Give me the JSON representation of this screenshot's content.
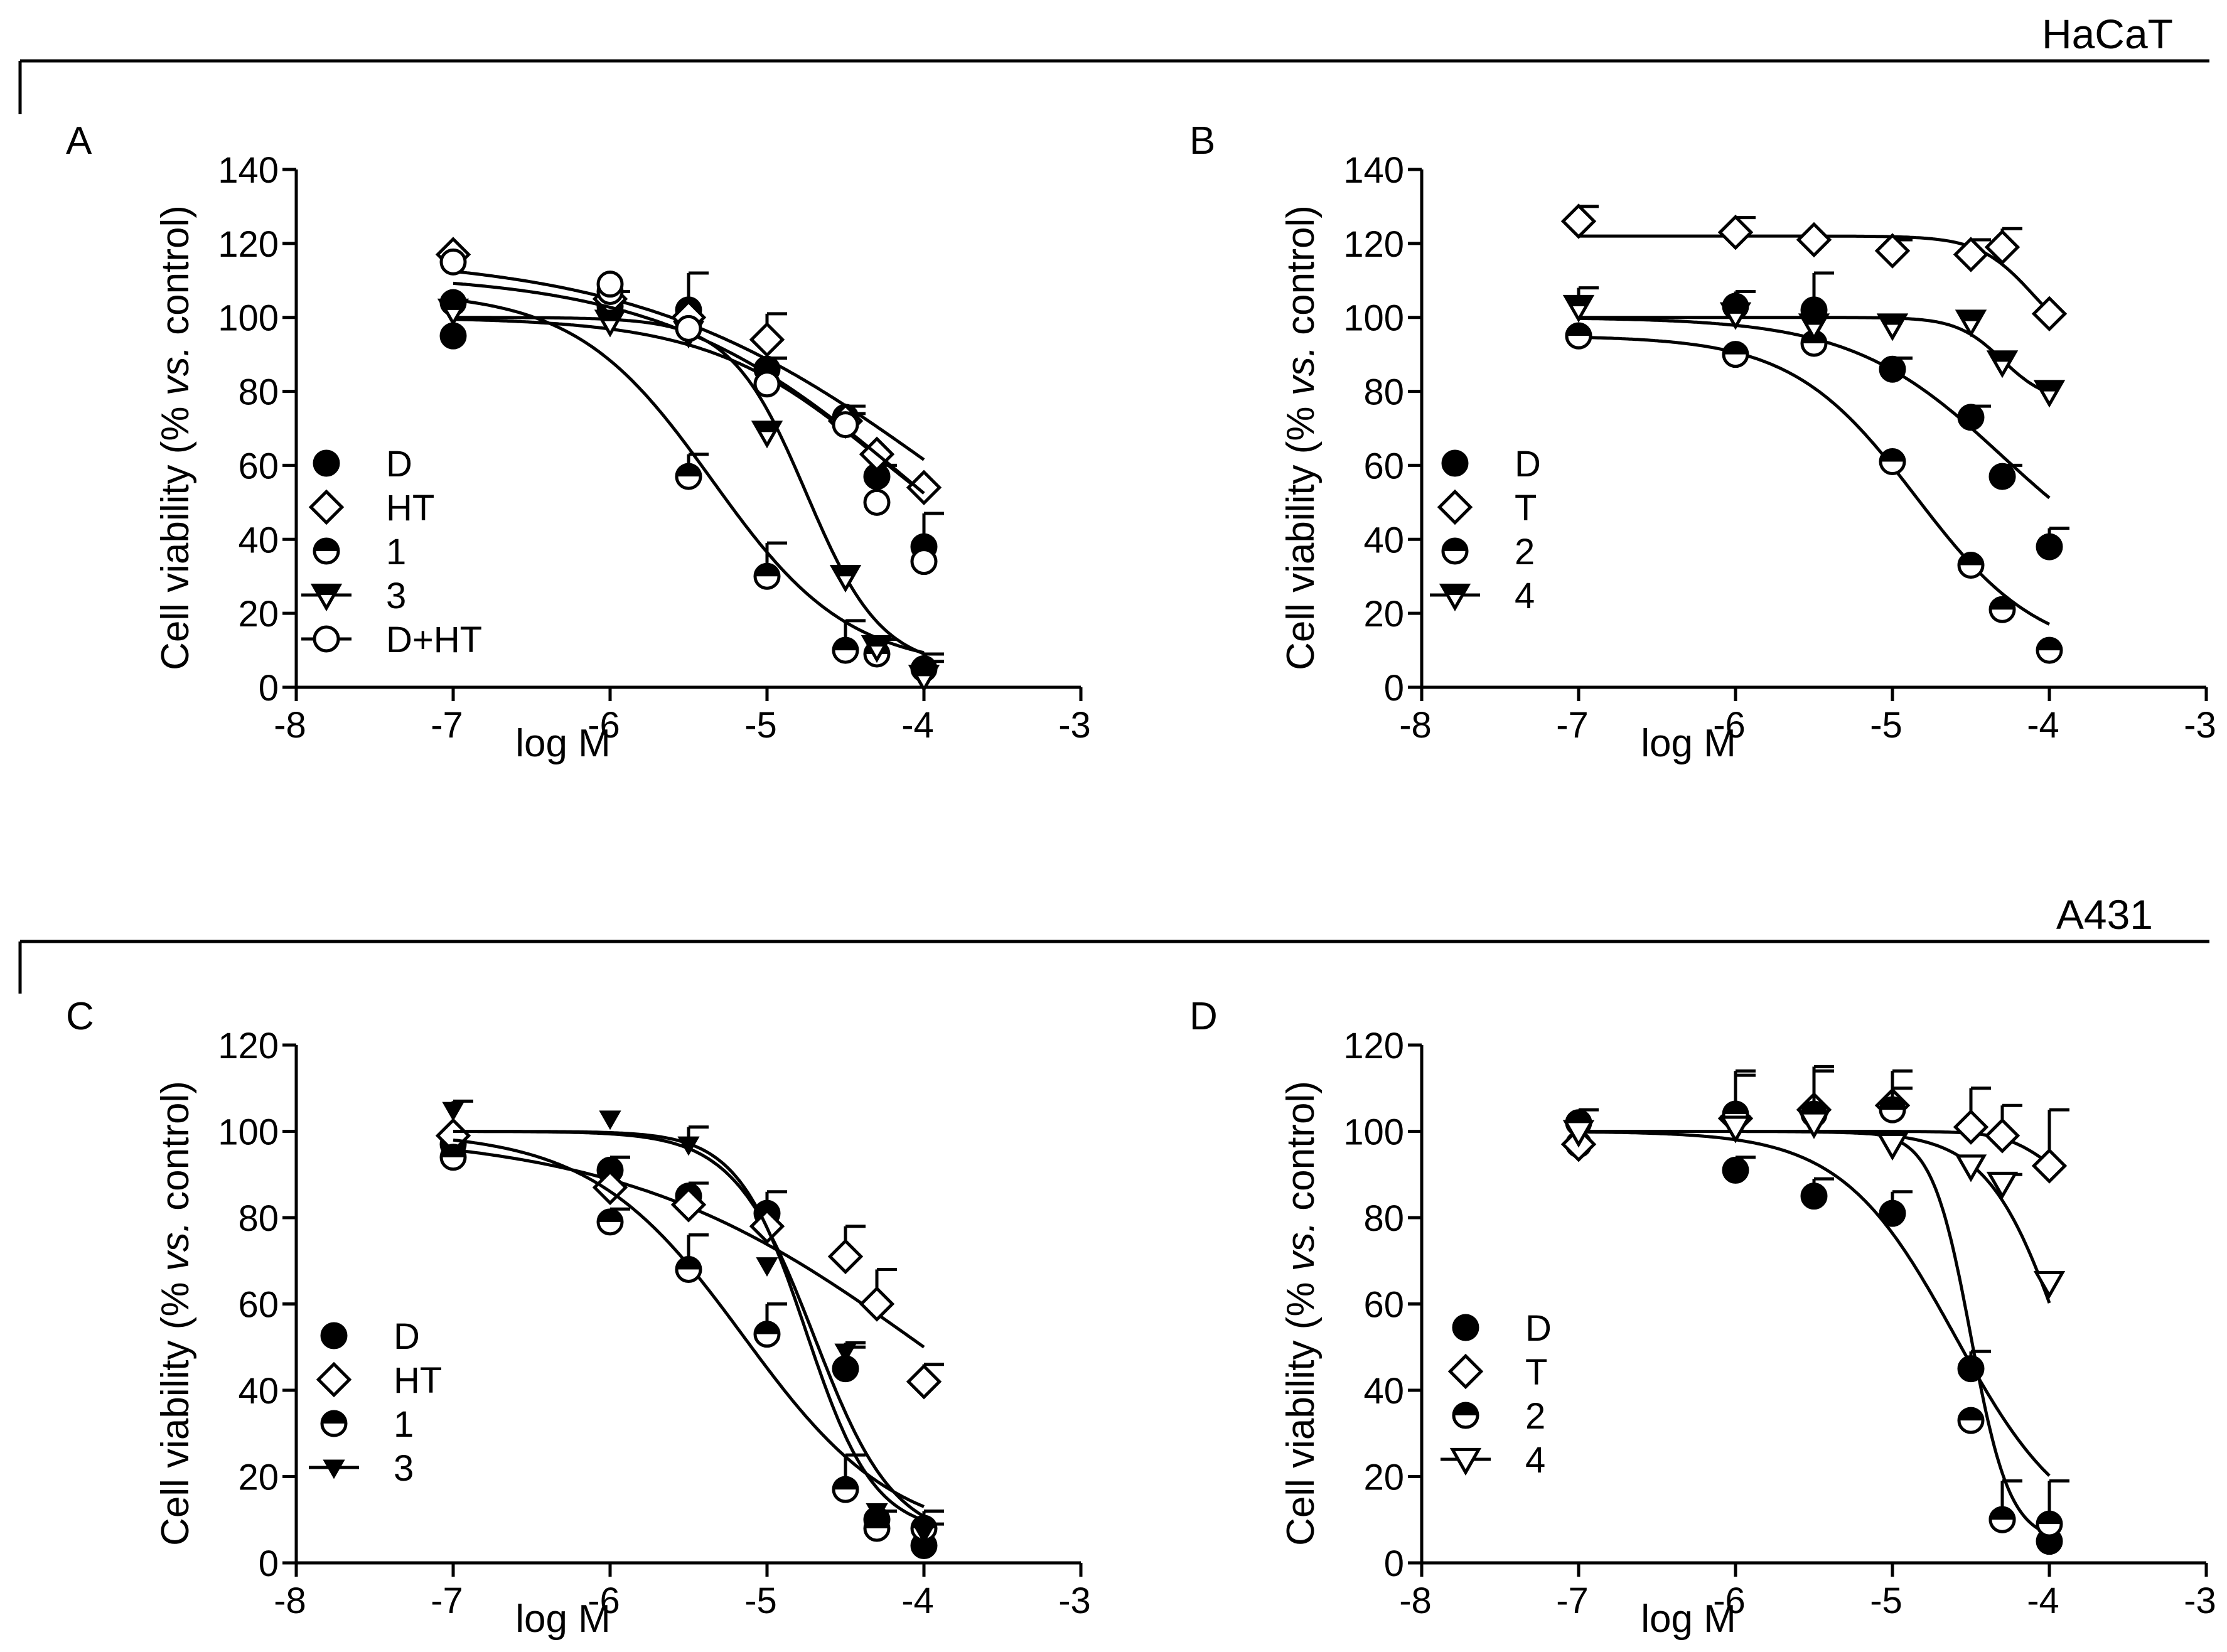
{
  "sections": [
    {
      "label": "HaCaT"
    },
    {
      "label": "A431"
    }
  ],
  "chart_data": [
    {
      "type": "scatter",
      "panel": "A",
      "section": "HaCaT",
      "xlabel": "log M",
      "ylabel_parts": [
        "Cell viability (% ",
        "vs.",
        " control)"
      ],
      "xlim": [
        -8,
        -3
      ],
      "ylim": [
        0,
        140
      ],
      "xticks": [
        -8,
        -7,
        -6,
        -5,
        -4,
        -3
      ],
      "yticks": [
        0,
        20,
        40,
        60,
        80,
        100,
        120,
        140
      ],
      "legend_position": "lower-left",
      "series": [
        {
          "name": "D",
          "marker": "circle-filled",
          "fit": {
            "top": 100,
            "bottom": 25,
            "logec50": -4.3,
            "hill": 0.8
          },
          "points": [
            {
              "x": -7,
              "y": 95,
              "err": 0
            },
            {
              "x": -6,
              "y": 103,
              "err": 4
            },
            {
              "x": -5.5,
              "y": 102,
              "err": 10
            },
            {
              "x": -5,
              "y": 86,
              "err": 3
            },
            {
              "x": -4.5,
              "y": 73,
              "err": 3
            },
            {
              "x": -4.3,
              "y": 57,
              "err": 3
            },
            {
              "x": -4,
              "y": 38,
              "err": 9
            }
          ]
        },
        {
          "name": "HT",
          "marker": "diamond-open",
          "fit": {
            "top": 117,
            "bottom": 0,
            "logec50": -3.9,
            "hill": 0.45
          },
          "points": [
            {
              "x": -7,
              "y": 117,
              "err": 0
            },
            {
              "x": -6,
              "y": 105,
              "err": 0
            },
            {
              "x": -5.5,
              "y": 100,
              "err": 0
            },
            {
              "x": -5,
              "y": 94,
              "err": 7
            },
            {
              "x": -4.5,
              "y": 72,
              "err": 2
            },
            {
              "x": -4.3,
              "y": 63,
              "err": 0
            },
            {
              "x": -4,
              "y": 54,
              "err": 0
            }
          ]
        },
        {
          "name": "1",
          "marker": "circle-half",
          "fit": {
            "top": 107,
            "bottom": 5,
            "logec50": -5.35,
            "hill": 1.0
          },
          "points": [
            {
              "x": -7,
              "y": 104,
              "err": 0
            },
            {
              "x": -6,
              "y": 107,
              "err": 0
            },
            {
              "x": -5.5,
              "y": 57,
              "err": 6
            },
            {
              "x": -5,
              "y": 30,
              "err": 9
            },
            {
              "x": -4.5,
              "y": 10,
              "err": 8
            },
            {
              "x": -4.3,
              "y": 9,
              "err": 4
            },
            {
              "x": -4,
              "y": 5,
              "err": 4
            }
          ]
        },
        {
          "name": "3",
          "marker": "triangle-down-half",
          "fit": {
            "top": 100,
            "bottom": 5,
            "logec50": -4.75,
            "hill": 1.8
          },
          "points": [
            {
              "x": -7,
              "y": 102,
              "err": 0
            },
            {
              "x": -6,
              "y": 99,
              "err": 0
            },
            {
              "x": -5.5,
              "y": 96,
              "err": 0
            },
            {
              "x": -5,
              "y": 69,
              "err": 0
            },
            {
              "x": -4.5,
              "y": 30,
              "err": 0
            },
            {
              "x": -4.3,
              "y": 11,
              "err": 2
            },
            {
              "x": -4,
              "y": 3,
              "err": 4
            }
          ]
        },
        {
          "name": "D+HT",
          "marker": "circle-open",
          "fit": {
            "top": 112,
            "bottom": 0,
            "logec50": -4.1,
            "hill": 0.55
          },
          "points": [
            {
              "x": -7,
              "y": 115,
              "err": 0
            },
            {
              "x": -6,
              "y": 109,
              "err": 0
            },
            {
              "x": -5.5,
              "y": 97,
              "err": 0
            },
            {
              "x": -5,
              "y": 82,
              "err": 0
            },
            {
              "x": -4.5,
              "y": 71,
              "err": 0
            },
            {
              "x": -4.3,
              "y": 50,
              "err": 0
            },
            {
              "x": -4,
              "y": 34,
              "err": 0
            }
          ]
        }
      ]
    },
    {
      "type": "scatter",
      "panel": "B",
      "section": "HaCaT",
      "xlabel": "log M",
      "ylabel_parts": [
        "Cell viability (% ",
        "vs.",
        " control)"
      ],
      "xlim": [
        -8,
        -3
      ],
      "ylim": [
        0,
        140
      ],
      "xticks": [
        -8,
        -7,
        -6,
        -5,
        -4,
        -3
      ],
      "yticks": [
        0,
        20,
        40,
        60,
        80,
        100,
        120,
        140
      ],
      "legend_position": "lower-left",
      "series": [
        {
          "name": "D",
          "marker": "circle-filled",
          "fit": {
            "top": 100,
            "bottom": 25,
            "logec50": -4.3,
            "hill": 0.9
          },
          "points": [
            {
              "x": -7,
              "y": 95,
              "err": 0
            },
            {
              "x": -6,
              "y": 103,
              "err": 4
            },
            {
              "x": -5.5,
              "y": 102,
              "err": 10
            },
            {
              "x": -5,
              "y": 86,
              "err": 3
            },
            {
              "x": -4.5,
              "y": 73,
              "err": 3
            },
            {
              "x": -4.3,
              "y": 57,
              "err": 3
            },
            {
              "x": -4,
              "y": 38,
              "err": 5
            }
          ]
        },
        {
          "name": "T",
          "marker": "diamond-open",
          "fit": {
            "top": 122,
            "bottom": 90,
            "logec50": -4.1,
            "hill": 2.5
          },
          "points": [
            {
              "x": -7,
              "y": 126,
              "err": 4
            },
            {
              "x": -6,
              "y": 123,
              "err": 4
            },
            {
              "x": -5.5,
              "y": 121,
              "err": 0
            },
            {
              "x": -5,
              "y": 118,
              "err": 3
            },
            {
              "x": -4.5,
              "y": 117,
              "err": 4
            },
            {
              "x": -4.3,
              "y": 119,
              "err": 5
            },
            {
              "x": -4,
              "y": 101,
              "err": 0
            }
          ]
        },
        {
          "name": "2",
          "marker": "circle-half",
          "fit": {
            "top": 95,
            "bottom": 8,
            "logec50": -4.85,
            "hill": 1.1
          },
          "points": [
            {
              "x": -7,
              "y": 95,
              "err": 0
            },
            {
              "x": -6,
              "y": 90,
              "err": 0
            },
            {
              "x": -5.5,
              "y": 93,
              "err": 0
            },
            {
              "x": -5,
              "y": 61,
              "err": 0
            },
            {
              "x": -4.5,
              "y": 33,
              "err": 0
            },
            {
              "x": -4.3,
              "y": 21,
              "err": 0
            },
            {
              "x": -4,
              "y": 10,
              "err": 0
            }
          ]
        },
        {
          "name": "4",
          "marker": "triangle-down-half",
          "fit": {
            "top": 100,
            "bottom": 77,
            "logec50": -4.3,
            "hill": 3.0
          },
          "points": [
            {
              "x": -7,
              "y": 103,
              "err": 5
            },
            {
              "x": -6,
              "y": 101,
              "err": 0
            },
            {
              "x": -5.5,
              "y": 98,
              "err": 0
            },
            {
              "x": -5,
              "y": 98,
              "err": 0
            },
            {
              "x": -4.5,
              "y": 99,
              "err": 0
            },
            {
              "x": -4.3,
              "y": 88,
              "err": 0
            },
            {
              "x": -4,
              "y": 80,
              "err": 0
            }
          ]
        }
      ]
    },
    {
      "type": "scatter",
      "panel": "C",
      "section": "A431",
      "xlabel": "log M",
      "ylabel_parts": [
        "Cell viability (% ",
        "vs.",
        " control)"
      ],
      "xlim": [
        -8,
        -3
      ],
      "ylim": [
        0,
        120
      ],
      "xticks": [
        -8,
        -7,
        -6,
        -5,
        -4,
        -3
      ],
      "yticks": [
        0,
        20,
        40,
        60,
        80,
        100,
        120
      ],
      "legend_position": "lower-left",
      "series": [
        {
          "name": "D",
          "marker": "circle-filled",
          "fit": {
            "top": 100,
            "bottom": 5,
            "logec50": -4.7,
            "hill": 1.7
          },
          "points": [
            {
              "x": -7,
              "y": 97,
              "err": 0
            },
            {
              "x": -6,
              "y": 91,
              "err": 3
            },
            {
              "x": -5.5,
              "y": 85,
              "err": 3
            },
            {
              "x": -5,
              "y": 81,
              "err": 5
            },
            {
              "x": -4.5,
              "y": 45,
              "err": 5
            },
            {
              "x": -4.3,
              "y": 10,
              "err": 2
            },
            {
              "x": -4,
              "y": 4,
              "err": 5
            }
          ]
        },
        {
          "name": "HT",
          "marker": "diamond-open",
          "fit": {
            "top": 100,
            "bottom": 0,
            "logec50": -4.0,
            "hill": 0.45
          },
          "points": [
            {
              "x": -7,
              "y": 99,
              "err": 0
            },
            {
              "x": -6,
              "y": 87,
              "err": 0
            },
            {
              "x": -5.5,
              "y": 83,
              "err": 0
            },
            {
              "x": -5,
              "y": 78,
              "err": 0
            },
            {
              "x": -4.5,
              "y": 71,
              "err": 7
            },
            {
              "x": -4.3,
              "y": 60,
              "err": 8
            },
            {
              "x": -4,
              "y": 42,
              "err": 4
            }
          ]
        },
        {
          "name": "1",
          "marker": "circle-half",
          "fit": {
            "top": 100,
            "bottom": 5,
            "logec50": -5.15,
            "hill": 0.9
          },
          "points": [
            {
              "x": -7,
              "y": 94,
              "err": 0
            },
            {
              "x": -6,
              "y": 79,
              "err": 3
            },
            {
              "x": -5.5,
              "y": 68,
              "err": 8
            },
            {
              "x": -5,
              "y": 53,
              "err": 7
            },
            {
              "x": -4.5,
              "y": 17,
              "err": 8
            },
            {
              "x": -4.3,
              "y": 8,
              "err": 0
            },
            {
              "x": -4,
              "y": 8,
              "err": 4
            }
          ]
        },
        {
          "name": "3",
          "marker": "triangle-down-filled-small",
          "fit": {
            "top": 100,
            "bottom": 7,
            "logec50": -4.75,
            "hill": 2.0
          },
          "points": [
            {
              "x": -7,
              "y": 105,
              "err": 2
            },
            {
              "x": -6,
              "y": 103,
              "err": 0
            },
            {
              "x": -5.5,
              "y": 97,
              "err": 4
            },
            {
              "x": -5,
              "y": 69,
              "err": 0
            },
            {
              "x": -4.5,
              "y": 49,
              "err": 2
            },
            {
              "x": -4.3,
              "y": 12,
              "err": 0
            },
            {
              "x": -4,
              "y": 7,
              "err": 0
            }
          ]
        }
      ]
    },
    {
      "type": "scatter",
      "panel": "D",
      "section": "A431",
      "xlabel": "log M",
      "ylabel_parts": [
        "Cell viability (% ",
        "vs.",
        " control)"
      ],
      "xlim": [
        -8,
        -3
      ],
      "ylim": [
        0,
        120
      ],
      "xticks": [
        -8,
        -7,
        -6,
        -5,
        -4,
        -3
      ],
      "yticks": [
        0,
        20,
        40,
        60,
        80,
        100,
        120
      ],
      "legend_position": "lower-left",
      "series": [
        {
          "name": "D",
          "marker": "circle-filled",
          "fit": {
            "top": 100,
            "bottom": 5,
            "logec50": -4.6,
            "hill": 1.2
          },
          "points": [
            {
              "x": -7,
              "y": 97,
              "err": 0
            },
            {
              "x": -6,
              "y": 91,
              "err": 3
            },
            {
              "x": -5.5,
              "y": 85,
              "err": 4
            },
            {
              "x": -5,
              "y": 81,
              "err": 5
            },
            {
              "x": -4.5,
              "y": 45,
              "err": 4
            },
            {
              "x": -4.3,
              "y": 10,
              "err": 0
            },
            {
              "x": -4,
              "y": 5,
              "err": 0
            }
          ]
        },
        {
          "name": "T",
          "marker": "diamond-open",
          "fit": {
            "top": 100,
            "bottom": 85,
            "logec50": -4.0,
            "hill": 3.0
          },
          "points": [
            {
              "x": -7,
              "y": 97,
              "err": 0
            },
            {
              "x": -6,
              "y": 103,
              "err": 10
            },
            {
              "x": -5.5,
              "y": 105,
              "err": 10
            },
            {
              "x": -5,
              "y": 106,
              "err": 8
            },
            {
              "x": -4.5,
              "y": 101,
              "err": 9
            },
            {
              "x": -4.3,
              "y": 99,
              "err": 7
            },
            {
              "x": -4,
              "y": 92,
              "err": 13
            }
          ]
        },
        {
          "name": "2",
          "marker": "circle-half",
          "fit": {
            "top": 100,
            "bottom": 5,
            "logec50": -4.5,
            "hill": 3.5
          },
          "points": [
            {
              "x": -7,
              "y": 102,
              "err": 3
            },
            {
              "x": -6,
              "y": 104,
              "err": 10
            },
            {
              "x": -5.5,
              "y": 104,
              "err": 10
            },
            {
              "x": -5,
              "y": 105,
              "err": 5
            },
            {
              "x": -4.5,
              "y": 33,
              "err": 0
            },
            {
              "x": -4.3,
              "y": 10,
              "err": 9
            },
            {
              "x": -4,
              "y": 9,
              "err": 10
            }
          ]
        },
        {
          "name": "4",
          "marker": "triangle-down-open",
          "fit": {
            "top": 100,
            "bottom": 0,
            "logec50": -3.9,
            "hill": 1.8
          },
          "points": [
            {
              "x": -7,
              "y": 100,
              "err": 0
            },
            {
              "x": -6,
              "y": 101,
              "err": 0
            },
            {
              "x": -5.5,
              "y": 102,
              "err": 0
            },
            {
              "x": -5,
              "y": 97,
              "err": 0
            },
            {
              "x": -4.5,
              "y": 92,
              "err": 0
            },
            {
              "x": -4.3,
              "y": 88,
              "err": 2
            },
            {
              "x": -4,
              "y": 65,
              "err": 0
            }
          ]
        }
      ]
    }
  ]
}
